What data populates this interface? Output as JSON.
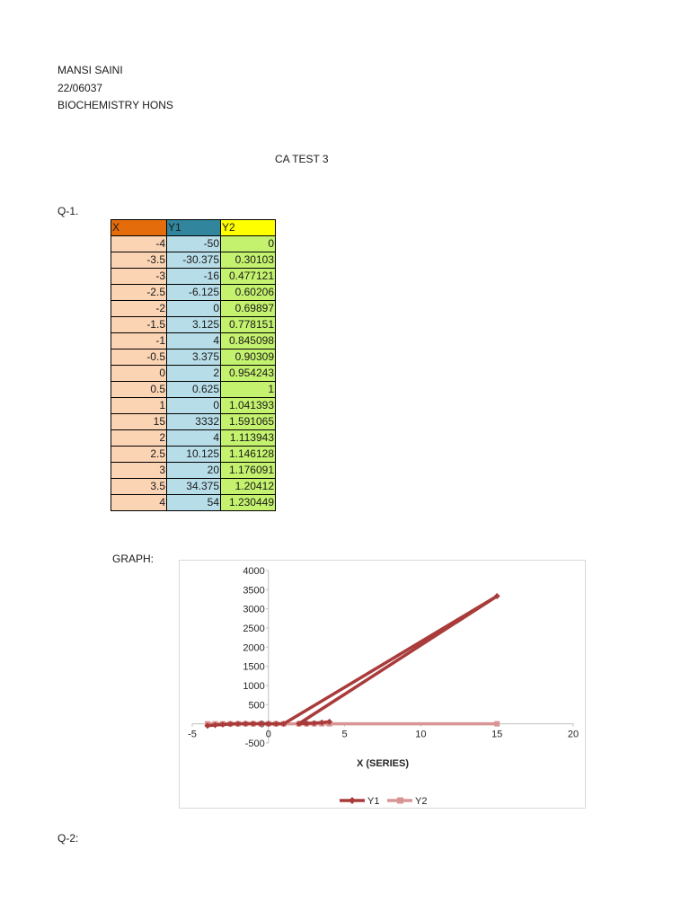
{
  "author": {
    "name": "MANSI SAINI",
    "roll": "22/06037",
    "course": "BIOCHEMISTRY HONS"
  },
  "title": "CA TEST 3",
  "q1_label": "Q-1.",
  "graph_label": "GRAPH:",
  "q2_label": "Q-2:",
  "table": {
    "headers": [
      "X",
      "Y1",
      "Y2"
    ],
    "header_colors": [
      "#e46c0a",
      "#31859c",
      "#ffff00"
    ],
    "column_colors": [
      "#fbd4b4",
      "#b7dde8",
      "#c4f26e"
    ],
    "rows": [
      [
        "-4",
        "-50",
        "0"
      ],
      [
        "-3.5",
        "-30.375",
        "0.30103"
      ],
      [
        "-3",
        "-16",
        "0.477121"
      ],
      [
        "-2.5",
        "-6.125",
        "0.60206"
      ],
      [
        "-2",
        "0",
        "0.69897"
      ],
      [
        "-1.5",
        "3.125",
        "0.778151"
      ],
      [
        "-1",
        "4",
        "0.845098"
      ],
      [
        "-0.5",
        "3.375",
        "0.90309"
      ],
      [
        "0",
        "2",
        "0.954243"
      ],
      [
        "0.5",
        "0.625",
        "1"
      ],
      [
        "1",
        "0",
        "1.041393"
      ],
      [
        "15",
        "3332",
        "1.591065"
      ],
      [
        "2",
        "4",
        "1.113943"
      ],
      [
        "2.5",
        "10.125",
        "1.146128"
      ],
      [
        "3",
        "20",
        "1.176091"
      ],
      [
        "3.5",
        "34.375",
        "1.20412"
      ],
      [
        "4",
        "54",
        "1.230449"
      ]
    ]
  },
  "chart_data": {
    "type": "line",
    "xlabel": "X (SERIES)",
    "ylabel": "",
    "xlim": [
      -5,
      20
    ],
    "ylim": [
      -500,
      4000
    ],
    "xticks": [
      -5,
      0,
      5,
      10,
      15,
      20
    ],
    "yticks": [
      -500,
      0,
      500,
      1000,
      1500,
      2000,
      2500,
      3000,
      3500,
      4000
    ],
    "legend_position": "bottom",
    "grid": false,
    "x": [
      -4,
      -3.5,
      -3,
      -2.5,
      -2,
      -1.5,
      -1,
      -0.5,
      0,
      0.5,
      1,
      15,
      2,
      2.5,
      3,
      3.5,
      4
    ],
    "series": [
      {
        "name": "Y1",
        "marker": "diamond",
        "color": "#a93b3b",
        "values": [
          -50,
          -30.375,
          -16,
          -6.125,
          0,
          3.125,
          4,
          3.375,
          2,
          0.625,
          0,
          3332,
          4,
          10.125,
          20,
          34.375,
          54
        ]
      },
      {
        "name": "Y2",
        "marker": "square",
        "color": "#d99594",
        "values": [
          0,
          0.30103,
          0.477121,
          0.60206,
          0.69897,
          0.778151,
          0.845098,
          0.90309,
          0.954243,
          1,
          1.041393,
          1.591065,
          1.113943,
          1.146128,
          1.176091,
          1.20412,
          1.230449
        ]
      }
    ]
  }
}
